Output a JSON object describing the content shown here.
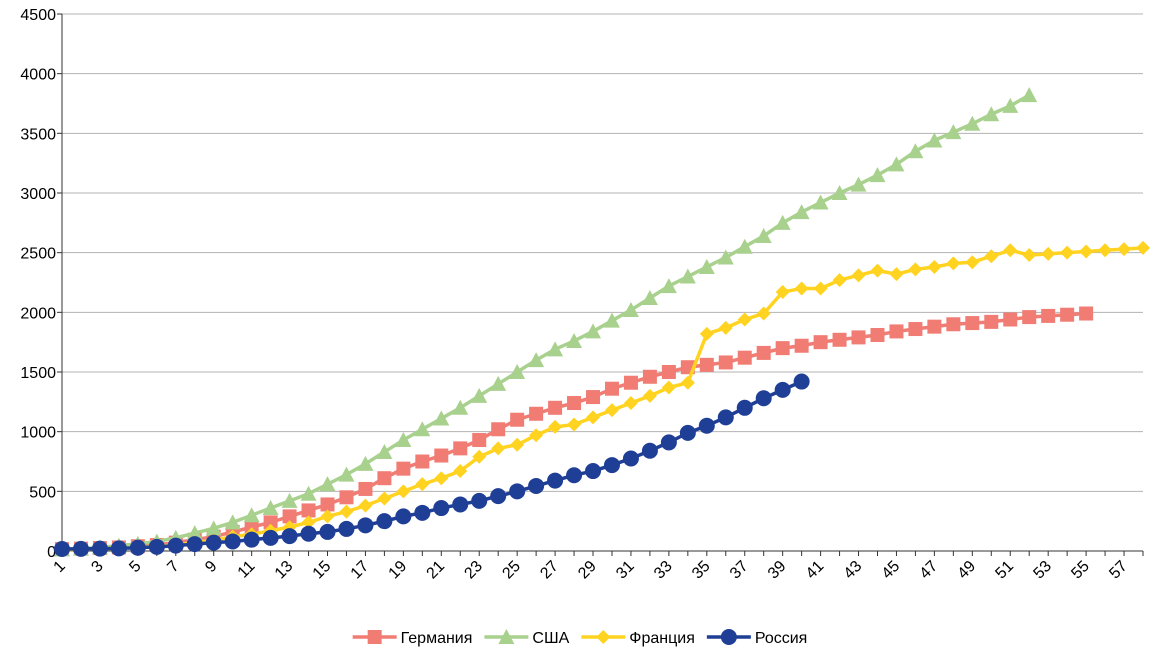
{
  "chart_data": {
    "type": "line",
    "categories": [
      1,
      null,
      3,
      null,
      5,
      null,
      7,
      null,
      9,
      null,
      11,
      null,
      13,
      null,
      15,
      null,
      17,
      null,
      19,
      null,
      21,
      null,
      23,
      null,
      25,
      null,
      27,
      null,
      29,
      null,
      31,
      null,
      33,
      null,
      35,
      null,
      37,
      null,
      39,
      null,
      41,
      null,
      43,
      null,
      45,
      null,
      47,
      null,
      49,
      null,
      51,
      null,
      53,
      null,
      55,
      null,
      57,
      null
    ],
    "ylim": [
      0,
      4500
    ],
    "yticks": [
      0,
      500,
      1000,
      1500,
      2000,
      2500,
      3000,
      3500,
      4000,
      4500
    ],
    "grid": true,
    "legend": "bottom",
    "series": [
      {
        "name": "Германия",
        "color": "#f07c74",
        "marker": "square",
        "values": [
          16,
          20,
          25,
          30,
          40,
          50,
          70,
          95,
          120,
          160,
          200,
          240,
          290,
          340,
          390,
          450,
          520,
          610,
          690,
          750,
          800,
          860,
          930,
          1020,
          1100,
          1150,
          1200,
          1240,
          1290,
          1360,
          1410,
          1460,
          1500,
          1540,
          1560,
          1580,
          1620,
          1660,
          1700,
          1720,
          1750,
          1770,
          1790,
          1810,
          1840,
          1860,
          1880,
          1900,
          1910,
          1920,
          1940,
          1960,
          1970,
          1980,
          1990,
          null,
          null,
          null
        ]
      },
      {
        "name": "США",
        "color": "#a9d18e",
        "marker": "triangle",
        "values": [
          14,
          20,
          30,
          45,
          60,
          80,
          110,
          150,
          190,
          240,
          300,
          360,
          420,
          480,
          560,
          640,
          730,
          830,
          930,
          1020,
          1110,
          1200,
          1300,
          1400,
          1500,
          1600,
          1690,
          1760,
          1840,
          1930,
          2020,
          2120,
          2220,
          2300,
          2380,
          2460,
          2550,
          2640,
          2750,
          2840,
          2920,
          3000,
          3070,
          3150,
          3240,
          3350,
          3440,
          3510,
          3580,
          3660,
          3730,
          3820,
          null,
          null,
          null,
          null,
          null,
          null
        ]
      },
      {
        "name": "Франция",
        "color": "#ffd320",
        "marker": "diamond",
        "values": [
          10,
          15,
          20,
          25,
          30,
          40,
          50,
          70,
          90,
          120,
          140,
          170,
          200,
          240,
          290,
          330,
          380,
          440,
          500,
          560,
          610,
          670,
          790,
          860,
          890,
          970,
          1040,
          1060,
          1120,
          1180,
          1240,
          1300,
          1370,
          1410,
          1820,
          1870,
          1940,
          1990,
          2170,
          2200,
          2200,
          2270,
          2310,
          2350,
          2320,
          2360,
          2380,
          2410,
          2420,
          2470,
          2520,
          2480,
          2490,
          2500,
          2510,
          2520,
          2530,
          2540
        ]
      },
      {
        "name": "Россия",
        "color": "#1f3e96",
        "marker": "circle",
        "values": [
          17,
          18,
          20,
          22,
          28,
          35,
          45,
          58,
          70,
          80,
          95,
          110,
          125,
          145,
          160,
          185,
          215,
          250,
          290,
          320,
          360,
          390,
          420,
          460,
          500,
          545,
          590,
          635,
          670,
          720,
          775,
          840,
          910,
          990,
          1050,
          1120,
          1200,
          1280,
          1350,
          1420,
          null,
          null,
          null,
          null,
          null,
          null,
          null,
          null,
          null,
          null,
          null,
          null,
          null,
          null,
          null,
          null,
          null,
          null
        ]
      }
    ]
  }
}
